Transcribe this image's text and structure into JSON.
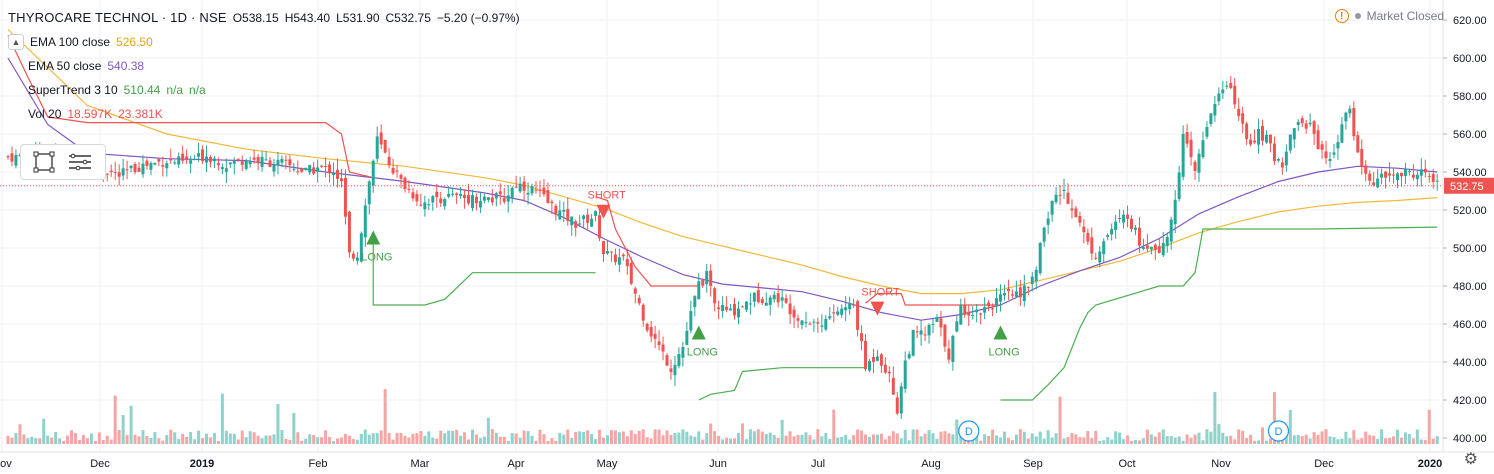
{
  "header": {
    "symbol": "THYROCARE TECHNOL · 1D · NSE",
    "ohlc": {
      "o": "O538.15",
      "h": "H543.40",
      "l": "L531.90",
      "c": "C532.75",
      "chg": "−5.20 (−0.97%)"
    }
  },
  "status": {
    "market": "Market Closed",
    "warn_icon": "warning-icon"
  },
  "indicators": {
    "ema100": {
      "label": "EMA 100 close",
      "value": "526.50",
      "color": "#f2b83a"
    },
    "ema50": {
      "label": "EMA 50 close",
      "value": "540.38",
      "color": "#7e57c2"
    },
    "supertrend": {
      "label": "SuperTrend 3 10",
      "value": "510.44",
      "na1": "n/a",
      "na2": "n/a",
      "color": "#43a047"
    },
    "vol": {
      "label": "Vol 20",
      "v1": "18.597K",
      "v2": "23.381K",
      "color": "#ef5350"
    }
  },
  "chart_data": {
    "type": "candlestick",
    "y_axis": {
      "ticks": [
        "620.00",
        "600.00",
        "580.00",
        "560.00",
        "540.00",
        "520.00",
        "500.00",
        "480.00",
        "460.00",
        "440.00",
        "420.00",
        "400.00"
      ],
      "ylim": [
        396,
        624
      ]
    },
    "x_axis": {
      "ticks": [
        "Nov",
        "Dec",
        "2019",
        "Feb",
        "Mar",
        "Apr",
        "May",
        "Jun",
        "Jul",
        "Aug",
        "Sep",
        "Oct",
        "Nov",
        "Dec",
        "2020"
      ]
    },
    "last_price": "532.75",
    "close_series": [
      [
        0,
        548
      ],
      [
        10,
        548
      ],
      [
        20,
        545
      ],
      [
        28,
        538
      ],
      [
        33,
        543
      ],
      [
        40,
        546
      ],
      [
        45,
        545
      ],
      [
        50,
        549
      ],
      [
        55,
        544
      ],
      [
        60,
        547
      ],
      [
        70,
        544
      ],
      [
        75,
        540
      ],
      [
        78,
        542
      ],
      [
        82,
        541
      ],
      [
        84,
        534
      ],
      [
        86,
        496
      ],
      [
        88,
        497
      ],
      [
        91,
        535
      ],
      [
        93,
        557
      ],
      [
        96,
        545
      ],
      [
        99,
        535
      ],
      [
        104,
        524
      ],
      [
        110,
        527
      ],
      [
        118,
        526
      ],
      [
        125,
        526
      ],
      [
        128,
        534
      ],
      [
        133,
        530
      ],
      [
        138,
        520
      ],
      [
        143,
        513
      ],
      [
        148,
        517
      ],
      [
        150,
        498
      ],
      [
        152,
        495
      ],
      [
        155,
        494
      ],
      [
        158,
        476
      ],
      [
        161,
        459
      ],
      [
        164,
        448
      ],
      [
        167,
        437
      ],
      [
        170,
        448
      ],
      [
        172,
        465
      ],
      [
        174,
        481
      ],
      [
        176,
        485
      ],
      [
        178,
        470
      ],
      [
        182,
        466
      ],
      [
        188,
        474
      ],
      [
        194,
        474
      ],
      [
        197,
        468
      ],
      [
        200,
        463
      ],
      [
        205,
        460
      ],
      [
        208,
        466
      ],
      [
        213,
        470
      ],
      [
        216,
        437
      ],
      [
        219,
        445
      ],
      [
        222,
        432
      ],
      [
        224,
        415
      ],
      [
        226,
        440
      ],
      [
        228,
        454
      ],
      [
        231,
        455
      ],
      [
        234,
        462
      ],
      [
        237,
        444
      ],
      [
        240,
        468
      ],
      [
        244,
        466
      ],
      [
        247,
        470
      ],
      [
        251,
        474
      ],
      [
        255,
        477
      ],
      [
        258,
        482
      ],
      [
        260,
        500
      ],
      [
        263,
        525
      ],
      [
        266,
        530
      ],
      [
        269,
        518
      ],
      [
        272,
        502
      ],
      [
        274,
        497
      ],
      [
        278,
        510
      ],
      [
        282,
        518
      ],
      [
        285,
        503
      ],
      [
        288,
        502
      ],
      [
        290,
        500
      ],
      [
        293,
        512
      ],
      [
        296,
        558
      ],
      [
        299,
        540
      ],
      [
        302,
        565
      ],
      [
        304,
        578
      ],
      [
        307,
        585
      ],
      [
        309,
        578
      ],
      [
        312,
        555
      ],
      [
        315,
        560
      ],
      [
        317,
        557
      ],
      [
        319,
        548
      ],
      [
        321,
        545
      ],
      [
        324,
        565
      ],
      [
        328,
        565
      ],
      [
        330,
        555
      ],
      [
        333,
        545
      ],
      [
        336,
        565
      ],
      [
        338,
        572
      ],
      [
        340,
        550
      ],
      [
        342,
        538
      ],
      [
        344,
        535
      ],
      [
        348,
        538
      ],
      [
        352,
        539
      ],
      [
        356,
        540
      ],
      [
        358,
        537
      ],
      [
        360,
        533
      ]
    ],
    "ema50_series": [
      [
        0,
        600
      ],
      [
        10,
        565
      ],
      [
        20,
        550
      ],
      [
        40,
        547
      ],
      [
        60,
        546
      ],
      [
        80,
        540
      ],
      [
        100,
        535
      ],
      [
        120,
        529
      ],
      [
        130,
        525
      ],
      [
        140,
        516
      ],
      [
        150,
        505
      ],
      [
        160,
        495
      ],
      [
        170,
        486
      ],
      [
        180,
        481
      ],
      [
        190,
        479
      ],
      [
        200,
        477
      ],
      [
        210,
        472
      ],
      [
        220,
        466
      ],
      [
        230,
        462
      ],
      [
        240,
        465
      ],
      [
        250,
        470
      ],
      [
        260,
        480
      ],
      [
        270,
        488
      ],
      [
        280,
        495
      ],
      [
        290,
        505
      ],
      [
        300,
        518
      ],
      [
        310,
        527
      ],
      [
        320,
        535
      ],
      [
        330,
        540
      ],
      [
        340,
        543
      ],
      [
        350,
        542
      ],
      [
        360,
        540
      ]
    ],
    "ema100_series": [
      [
        0,
        615
      ],
      [
        10,
        595
      ],
      [
        20,
        575
      ],
      [
        40,
        560
      ],
      [
        60,
        552
      ],
      [
        80,
        547
      ],
      [
        100,
        543
      ],
      [
        120,
        537
      ],
      [
        130,
        533
      ],
      [
        140,
        527
      ],
      [
        150,
        521
      ],
      [
        160,
        513
      ],
      [
        170,
        506
      ],
      [
        180,
        501
      ],
      [
        190,
        496
      ],
      [
        200,
        491
      ],
      [
        210,
        485
      ],
      [
        220,
        480
      ],
      [
        230,
        476
      ],
      [
        240,
        476
      ],
      [
        250,
        478
      ],
      [
        260,
        483
      ],
      [
        270,
        488
      ],
      [
        280,
        493
      ],
      [
        290,
        500
      ],
      [
        300,
        508
      ],
      [
        310,
        514
      ],
      [
        320,
        519
      ],
      [
        330,
        522
      ],
      [
        340,
        524
      ],
      [
        350,
        525
      ],
      [
        360,
        526.5
      ]
    ],
    "supertrend_segments": [
      {
        "dir": "down",
        "points": [
          [
            0,
            612
          ],
          [
            5,
            590
          ],
          [
            10,
            569
          ],
          [
            20,
            566
          ],
          [
            80,
            566
          ],
          [
            84,
            560
          ],
          [
            86,
            540
          ],
          [
            92,
            537
          ]
        ]
      },
      {
        "dir": "up",
        "points": [
          [
            92,
            505
          ],
          [
            92,
            470
          ],
          [
            105,
            470
          ],
          [
            110,
            473
          ],
          [
            117,
            487
          ],
          [
            148,
            487
          ]
        ]
      },
      {
        "dir": "down",
        "points": [
          [
            148,
            527
          ],
          [
            151,
            525
          ],
          [
            153,
            510
          ],
          [
            158,
            490
          ],
          [
            162,
            480
          ],
          [
            174,
            480
          ]
        ]
      },
      {
        "dir": "up",
        "points": [
          [
            174,
            420
          ],
          [
            177,
            423
          ],
          [
            183,
            425
          ],
          [
            185,
            435
          ],
          [
            195,
            437
          ],
          [
            216,
            437
          ]
        ]
      },
      {
        "dir": "down",
        "points": [
          [
            216,
            471
          ],
          [
            219,
            476
          ],
          [
            225,
            476
          ],
          [
            226,
            470
          ],
          [
            250,
            470
          ]
        ]
      },
      {
        "dir": "up",
        "points": [
          [
            250,
            420
          ],
          [
            258,
            420
          ],
          [
            262,
            428
          ],
          [
            266,
            437
          ],
          [
            270,
            458
          ],
          [
            272,
            466
          ],
          [
            274,
            470
          ],
          [
            290,
            480
          ],
          [
            296,
            480
          ],
          [
            299,
            487
          ],
          [
            301,
            510
          ],
          [
            330,
            510
          ],
          [
            360,
            511
          ]
        ]
      }
    ],
    "signals": [
      {
        "label": "LONG",
        "type": "long",
        "day": 92,
        "price": 505
      },
      {
        "label": "SHORT",
        "type": "short",
        "day": 150,
        "price": 527
      },
      {
        "label": "LONG",
        "type": "long",
        "day": 174,
        "price": 455
      },
      {
        "label": "SHORT",
        "type": "short",
        "day": 219,
        "price": 476
      },
      {
        "label": "LONG",
        "type": "long",
        "day": 250,
        "price": 455
      }
    ],
    "dividend_markers": [
      {
        "label": "D",
        "day": 240
      },
      {
        "label": "D",
        "day": 318
      }
    ]
  }
}
